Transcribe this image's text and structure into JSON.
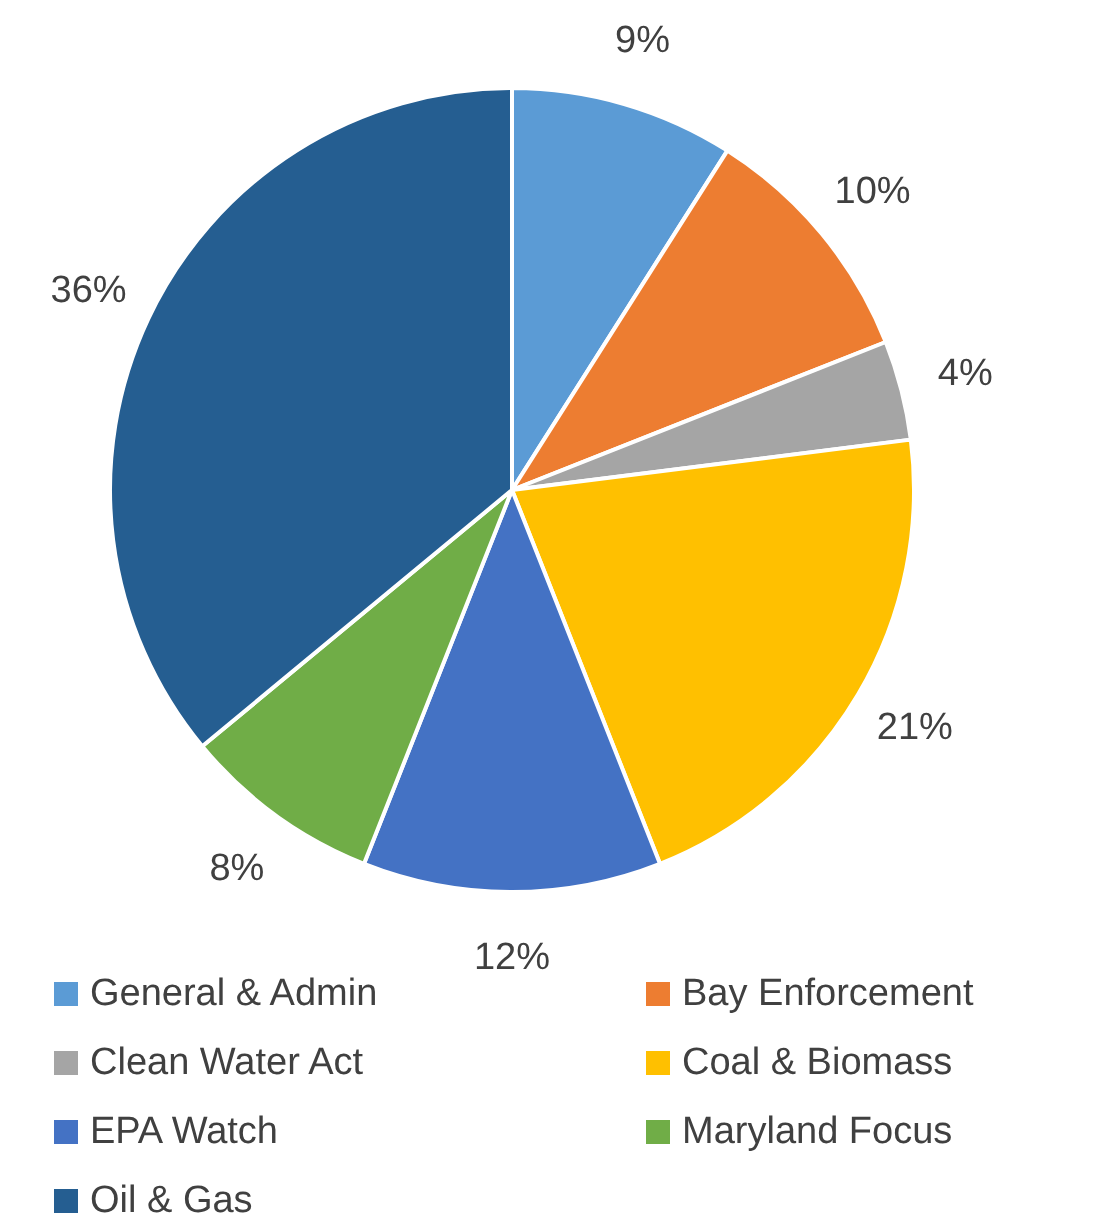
{
  "chart_data": {
    "type": "pie",
    "categories": [
      "General & Admin",
      "Bay Enforcement",
      "Clean Water Act",
      "Coal & Biomass",
      "EPA Watch",
      "Maryland Focus",
      "Oil & Gas"
    ],
    "values": [
      9,
      10,
      4,
      21,
      12,
      8,
      36
    ],
    "colors": [
      "#5b9bd5",
      "#ed7d31",
      "#a5a5a5",
      "#ffc000",
      "#4472c4",
      "#70ad47",
      "#255e91"
    ],
    "value_labels": [
      "9%",
      "10%",
      "4%",
      "21%",
      "12%",
      "8%",
      "36%"
    ],
    "legend": "bottom"
  }
}
